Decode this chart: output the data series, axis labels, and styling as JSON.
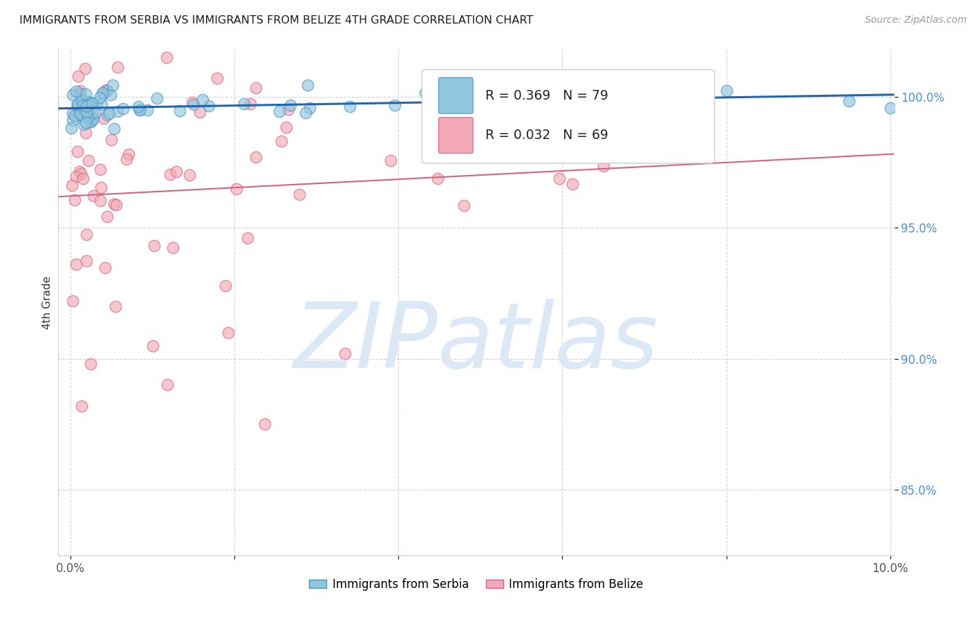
{
  "title": "IMMIGRANTS FROM SERBIA VS IMMIGRANTS FROM BELIZE 4TH GRADE CORRELATION CHART",
  "source": "Source: ZipAtlas.com",
  "ylabel": "4th Grade",
  "serbia_color": "#92c5de",
  "serbia_edge_color": "#4393c3",
  "belize_color": "#f4a9b8",
  "belize_edge_color": "#d6617a",
  "serbia_line_color": "#2166ac",
  "belize_line_color": "#d6617a",
  "serbia_R": 0.369,
  "serbia_N": 79,
  "belize_R": 0.032,
  "belize_N": 69,
  "legend_label_serbia": "Immigrants from Serbia",
  "legend_label_belize": "Immigrants from Belize",
  "xlim_min": -0.15,
  "xlim_max": 10.05,
  "ylim_min": 82.5,
  "ylim_max": 101.8,
  "yticks": [
    85.0,
    90.0,
    95.0,
    100.0
  ],
  "ytick_labels": [
    "85.0%",
    "90.0%",
    "95.0%",
    "100.0%"
  ],
  "xtick_labels": [
    "0.0%",
    "",
    "",
    "",
    "",
    "10.0%"
  ],
  "watermark_color": "#dce8f5"
}
